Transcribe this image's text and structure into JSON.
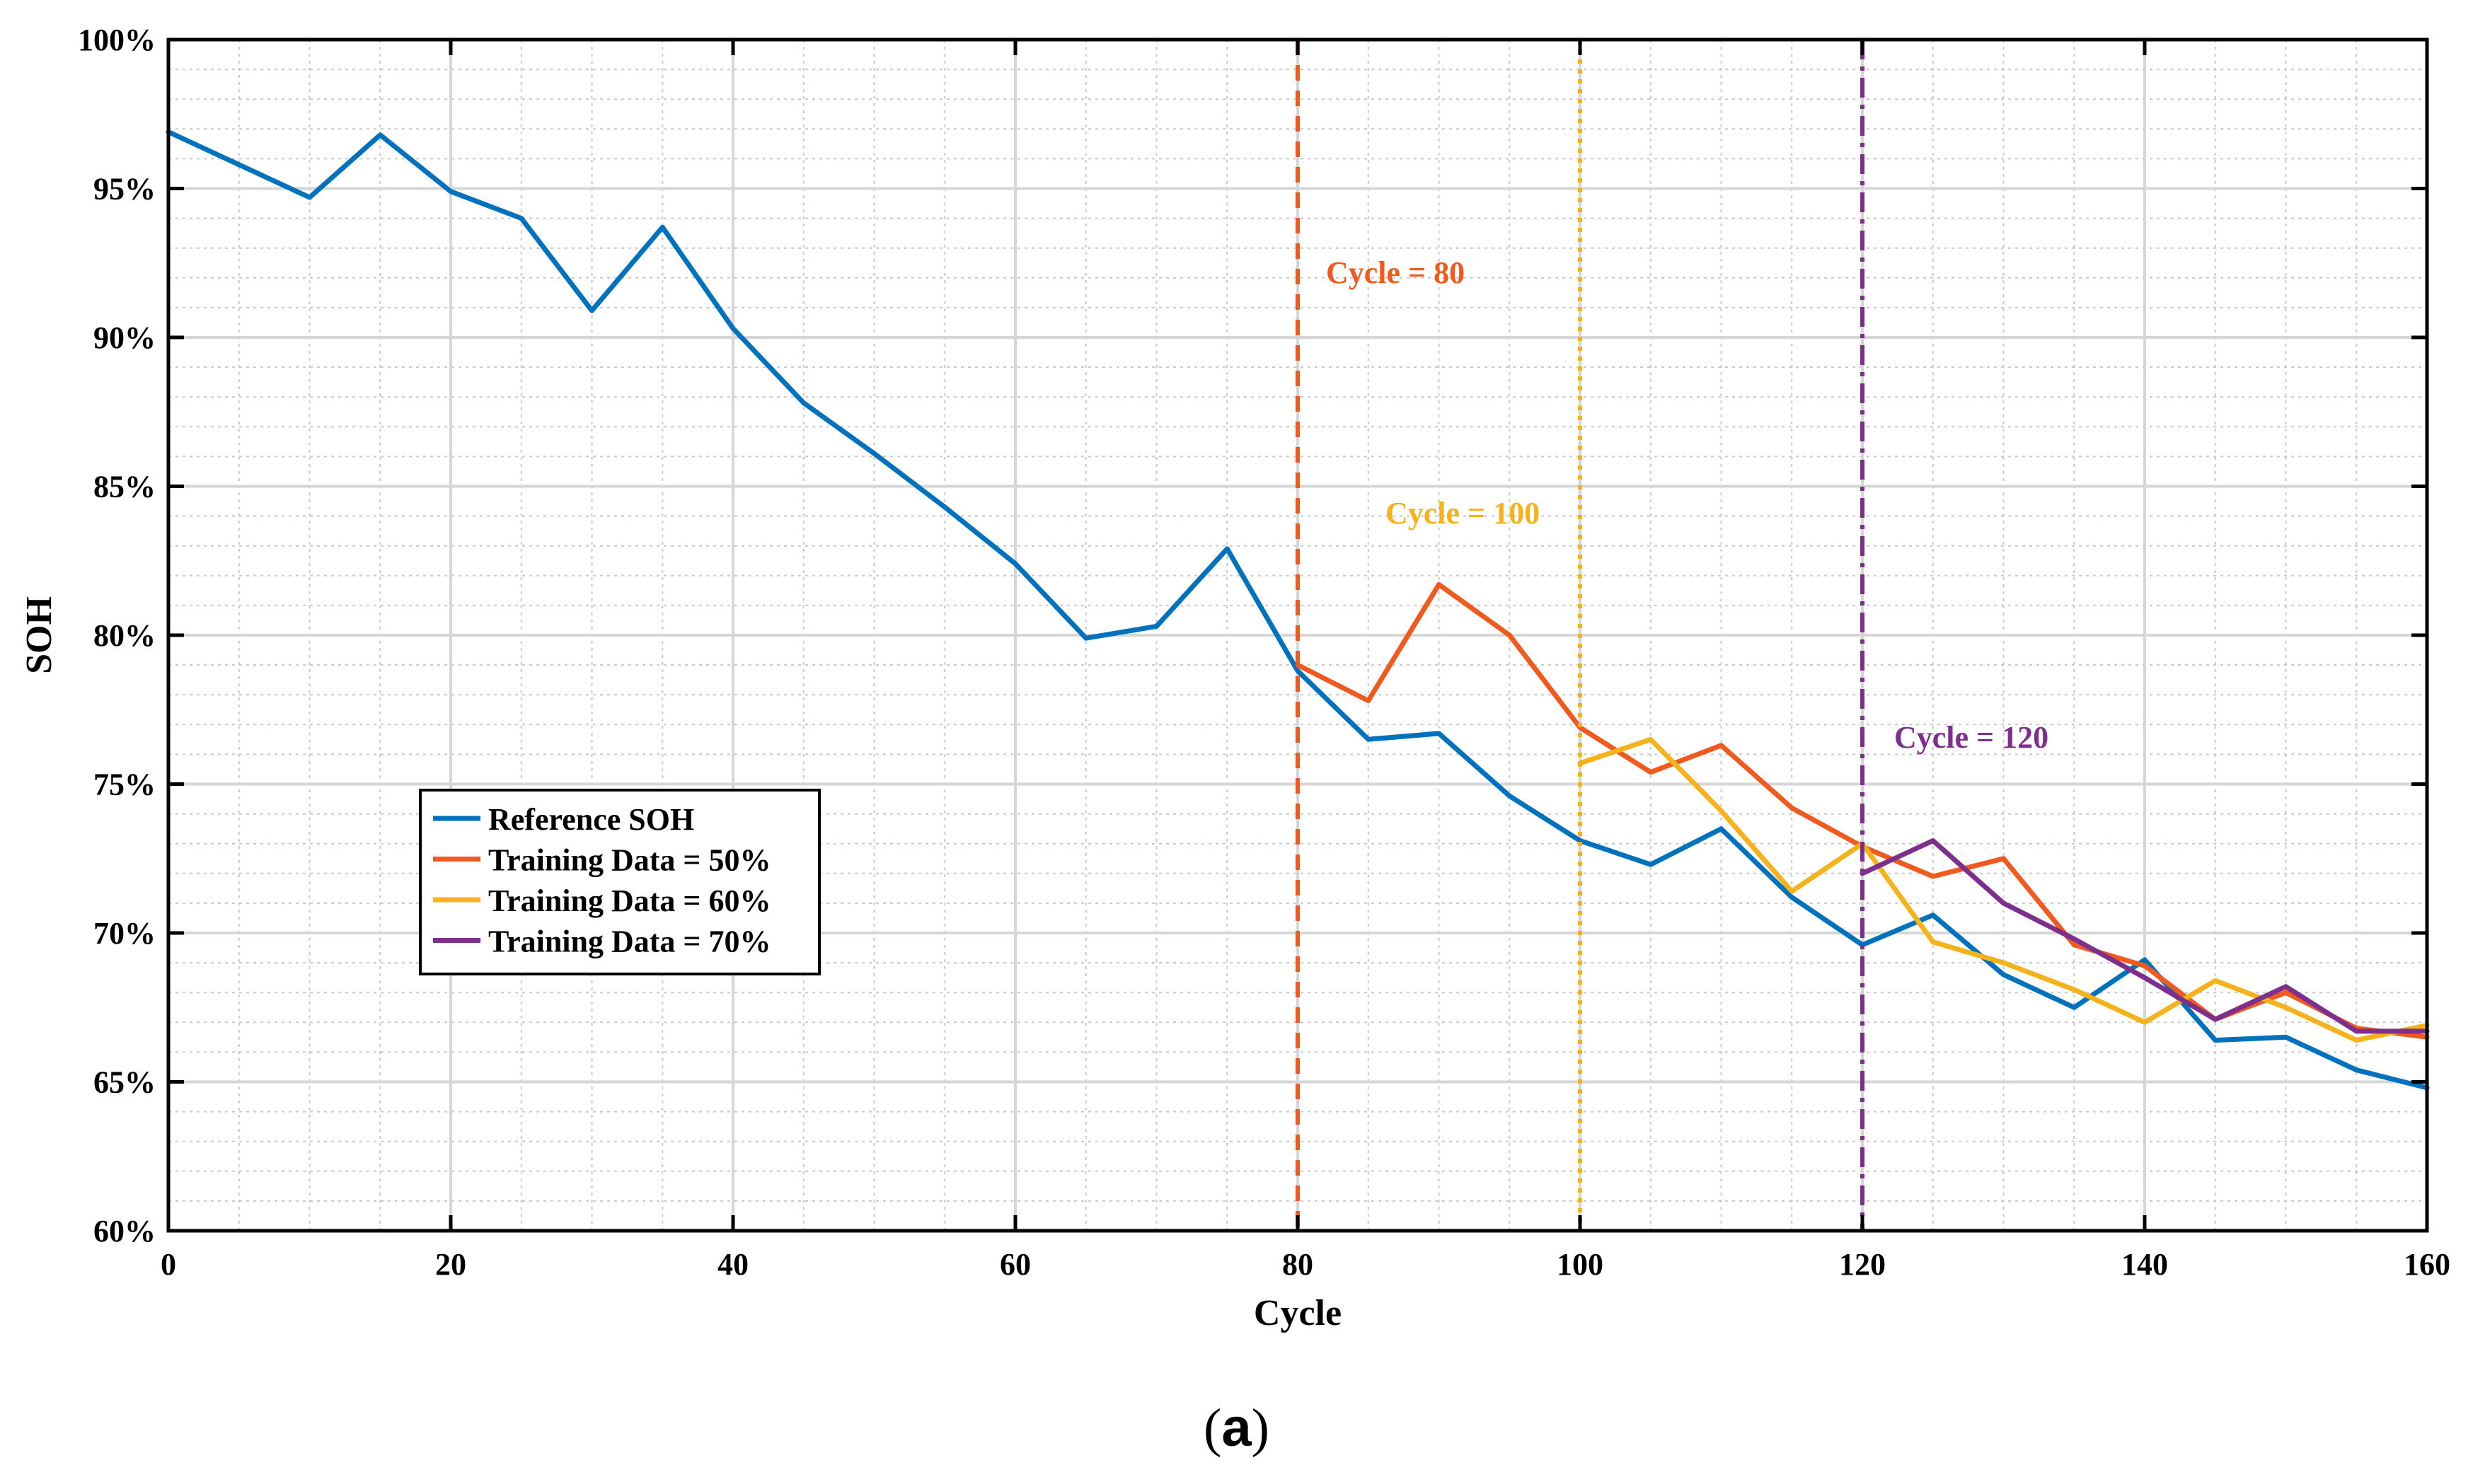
{
  "caption": {
    "open": "(",
    "letter": "a",
    "close": ")"
  },
  "chart_data": {
    "type": "line",
    "xlabel": "Cycle",
    "ylabel": "SOH",
    "xlim": [
      0,
      160
    ],
    "ylim": [
      60,
      100
    ],
    "grid": true,
    "minor_grid": true,
    "x_ticks": [
      0,
      20,
      40,
      60,
      80,
      100,
      120,
      140,
      160
    ],
    "x_tick_labels": [
      "0",
      "20",
      "40",
      "60",
      "80",
      "100",
      "120",
      "140",
      "160"
    ],
    "y_ticks": [
      60,
      65,
      70,
      75,
      80,
      85,
      90,
      95,
      100
    ],
    "y_tick_labels": [
      "60%",
      "65%",
      "70%",
      "75%",
      "80%",
      "85%",
      "90%",
      "95%",
      "100%"
    ],
    "legend_position": "middle-left",
    "series": [
      {
        "name": "Reference SOH",
        "color": "#0072BD",
        "x": [
          0,
          5,
          10,
          15,
          20,
          25,
          30,
          35,
          40,
          45,
          50,
          55,
          60,
          65,
          70,
          75,
          80,
          85,
          90,
          95,
          100,
          105,
          110,
          115,
          120,
          125,
          130,
          135,
          140,
          145,
          150,
          155,
          160
        ],
        "values": [
          96.9,
          95.8,
          94.7,
          96.8,
          94.9,
          94.0,
          90.9,
          93.7,
          90.3,
          87.8,
          86.1,
          84.3,
          82.4,
          79.9,
          80.3,
          82.9,
          78.8,
          76.5,
          76.7,
          74.6,
          73.1,
          72.3,
          73.5,
          71.2,
          69.6,
          70.6,
          68.6,
          67.5,
          69.1,
          66.4,
          66.5,
          65.4,
          64.8
        ]
      },
      {
        "name": "Training Data = 50%",
        "color": "#F05A1E",
        "x": [
          80,
          85,
          90,
          95,
          100,
          105,
          110,
          115,
          120,
          125,
          130,
          135,
          140,
          145,
          150,
          155,
          160
        ],
        "values": [
          79.0,
          77.8,
          81.7,
          80.0,
          76.9,
          75.4,
          76.3,
          74.2,
          72.9,
          71.9,
          72.5,
          69.6,
          68.9,
          67.1,
          68.0,
          66.8,
          66.5
        ]
      },
      {
        "name": "Training Data = 60%",
        "color": "#F5B21A",
        "x": [
          100,
          105,
          110,
          115,
          120,
          125,
          130,
          135,
          140,
          145,
          150,
          155,
          160
        ],
        "values": [
          75.7,
          76.5,
          74.1,
          71.4,
          73.0,
          69.7,
          69.0,
          68.1,
          67.0,
          68.4,
          67.5,
          66.4,
          66.9
        ]
      },
      {
        "name": "Training Data = 70%",
        "color": "#7E2F8E",
        "x": [
          120,
          125,
          130,
          135,
          140,
          145,
          150,
          155,
          160
        ],
        "values": [
          72.0,
          73.1,
          71.0,
          69.8,
          68.5,
          67.1,
          68.2,
          66.7,
          66.7
        ]
      }
    ],
    "vlines": [
      {
        "x": 80,
        "label": "Cycle = 80",
        "color": "#F05A1E",
        "style": "dashed"
      },
      {
        "x": 100,
        "label": "Cycle = 100",
        "color": "#F5B21A",
        "style": "dotted"
      },
      {
        "x": 120,
        "label": "Cycle = 120",
        "color": "#7E2F8E",
        "style": "dashdot"
      }
    ]
  }
}
